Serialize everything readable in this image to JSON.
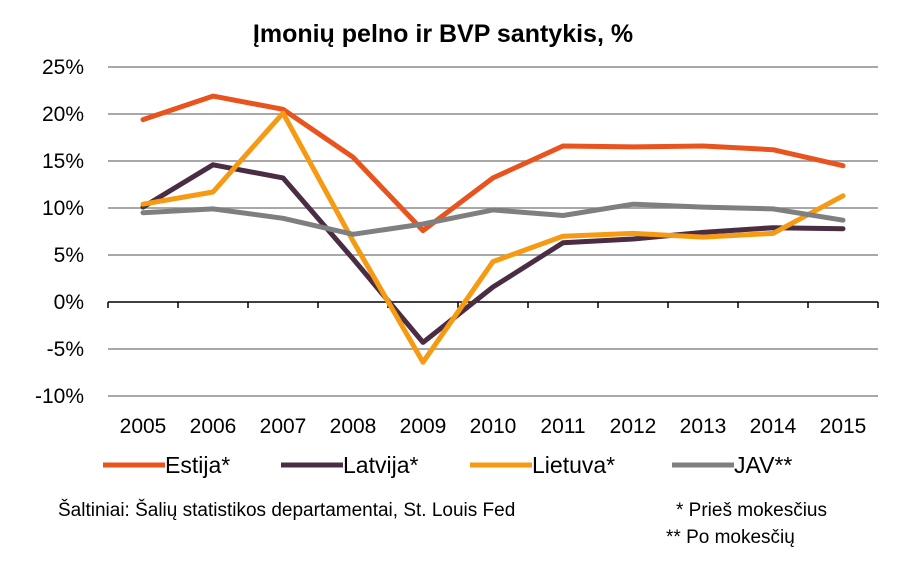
{
  "chart_data": {
    "type": "line",
    "title": "Įmonių pelno ir BVP santykis, %",
    "xlabel": "",
    "ylabel": "",
    "categories": [
      "2005",
      "2006",
      "2007",
      "2008",
      "2009",
      "2010",
      "2011",
      "2012",
      "2013",
      "2014",
      "2015"
    ],
    "ylim": [
      -10,
      25
    ],
    "yticks": [
      -10,
      -5,
      0,
      5,
      10,
      15,
      20,
      25
    ],
    "ytick_labels": [
      "-10%",
      "-5%",
      "0%",
      "5%",
      "10%",
      "15%",
      "20%",
      "25%"
    ],
    "grid": true,
    "legend_position": "bottom",
    "series": [
      {
        "name": "Estija*",
        "color": "#e8531e",
        "values": [
          19.4,
          21.9,
          20.5,
          15.4,
          7.6,
          13.2,
          16.6,
          16.5,
          16.6,
          16.2,
          14.5
        ]
      },
      {
        "name": "Latvija*",
        "color": "#4b2d43",
        "values": [
          10.1,
          14.6,
          13.2,
          4.6,
          -4.3,
          1.6,
          6.3,
          6.7,
          7.4,
          7.9,
          7.8
        ]
      },
      {
        "name": "Lietuva*",
        "color": "#f59a12",
        "values": [
          10.4,
          11.7,
          20.1,
          6.5,
          -6.4,
          4.3,
          7.0,
          7.3,
          6.9,
          7.3,
          11.3
        ]
      },
      {
        "name": "JAV**",
        "color": "#7f7f7f",
        "values": [
          9.5,
          9.9,
          8.9,
          7.2,
          8.3,
          9.8,
          9.2,
          10.4,
          10.1,
          9.9,
          8.7
        ]
      }
    ]
  },
  "notes": {
    "source": "Šaltiniai: Šalių statistikos departamentai, St. Louis Fed",
    "pre_tax": "* Prieš mokesčius",
    "post_tax": "** Po mokesčių"
  }
}
